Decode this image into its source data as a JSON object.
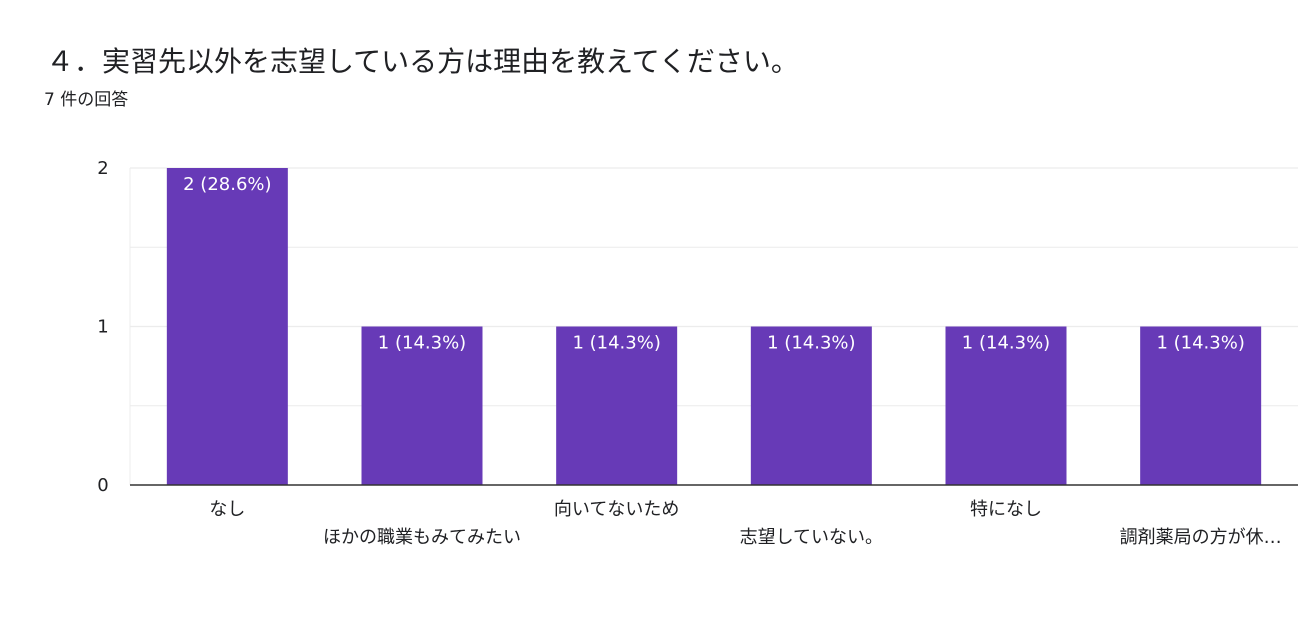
{
  "header": {
    "title": "４．実習先以外を志望している方は理由を教えてください。",
    "response_count": "7 件の回答"
  },
  "colors": {
    "bar": "#673ab7",
    "gridline": "#ececec",
    "axis": "#333333"
  },
  "chart_data": {
    "type": "bar",
    "categories": [
      "なし",
      "ほかの職業もみてみたい",
      "向いてないため",
      "志望していない。",
      "特になし",
      "調剤薬局の方が休…"
    ],
    "values": [
      2,
      1,
      1,
      1,
      1,
      1
    ],
    "data_labels": [
      "2 (28.6%)",
      "1 (14.3%)",
      "1 (14.3%)",
      "1 (14.3%)",
      "1 (14.3%)",
      "1 (14.3%)"
    ],
    "yticks": [
      "0",
      "1",
      "2"
    ],
    "ylim": [
      0,
      2
    ],
    "grid": true,
    "title": "",
    "xlabel": "",
    "ylabel": ""
  }
}
